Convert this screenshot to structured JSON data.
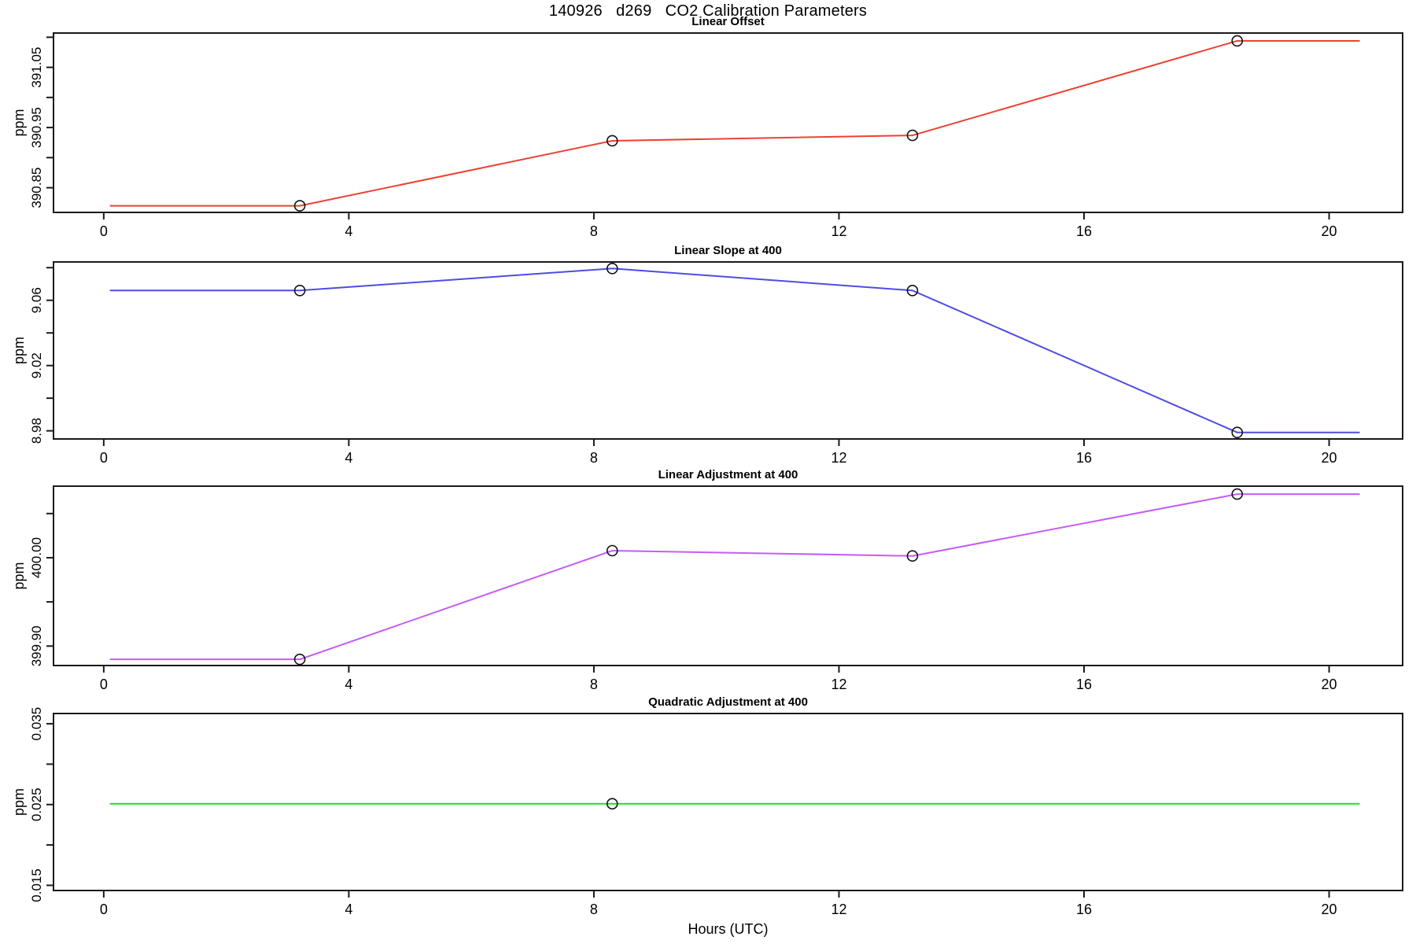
{
  "page_title": "140926   d269   CO2 Calibration Parameters",
  "x_axis": {
    "label": "Hours (UTC)",
    "lim": [
      -0.82,
      21.2
    ],
    "ticks": [
      {
        "v": 0,
        "label": "0"
      },
      {
        "v": 4,
        "label": "4"
      },
      {
        "v": 8,
        "label": "8"
      },
      {
        "v": 12,
        "label": "12"
      },
      {
        "v": 16,
        "label": "16"
      },
      {
        "v": 20,
        "label": "20"
      }
    ]
  },
  "colors": {
    "axis": "#1a1a1a",
    "marker_stroke": "#111111",
    "linear_offset": "#ef4034",
    "linear_slope": "#4d4de0",
    "linear_adjustment": "#c55cf7",
    "quadratic_adjustment": "#2ed32e"
  },
  "chart_data": [
    {
      "type": "line",
      "title": "Linear Offset",
      "ylabel": "ppm",
      "color": "#ef4034",
      "ylim": [
        390.809,
        391.107
      ],
      "yticks": [
        {
          "v": 390.85,
          "label": "390.85"
        },
        {
          "v": 390.9,
          "label": ""
        },
        {
          "v": 390.95,
          "label": "390.95"
        },
        {
          "v": 391.0,
          "label": ""
        },
        {
          "v": 391.05,
          "label": "391.05"
        },
        {
          "v": 391.1,
          "label": ""
        }
      ],
      "points": [
        [
          0.1,
          390.82
        ],
        [
          3.2,
          390.82
        ],
        [
          8.3,
          390.928
        ],
        [
          13.2,
          390.937
        ],
        [
          18.5,
          391.094
        ],
        [
          20.5,
          391.094
        ]
      ],
      "markers": [
        [
          3.2,
          390.82
        ],
        [
          8.3,
          390.928
        ],
        [
          13.2,
          390.937
        ],
        [
          18.5,
          391.094
        ]
      ]
    },
    {
      "type": "line",
      "title": "Linear Slope at 400",
      "ylabel": "ppm",
      "color": "#4d4de0",
      "ylim": [
        8.975,
        9.0835
      ],
      "yticks": [
        {
          "v": 8.98,
          "label": "8.98"
        },
        {
          "v": 9.0,
          "label": ""
        },
        {
          "v": 9.02,
          "label": "9.02"
        },
        {
          "v": 9.04,
          "label": ""
        },
        {
          "v": 9.06,
          "label": "9.06"
        },
        {
          "v": 9.08,
          "label": ""
        }
      ],
      "points": [
        [
          0.1,
          9.066
        ],
        [
          3.2,
          9.066
        ],
        [
          8.3,
          9.0795
        ],
        [
          13.2,
          9.066
        ],
        [
          18.5,
          8.979
        ],
        [
          20.5,
          8.979
        ]
      ],
      "markers": [
        [
          3.2,
          9.066
        ],
        [
          8.3,
          9.0795
        ],
        [
          13.2,
          9.066
        ],
        [
          18.5,
          8.979
        ]
      ]
    },
    {
      "type": "line",
      "title": "Linear Adjustment at 400",
      "ylabel": "ppm",
      "color": "#c55cf7",
      "ylim": [
        399.878,
        400.081
      ],
      "yticks": [
        {
          "v": 399.9,
          "label": "399.90"
        },
        {
          "v": 399.95,
          "label": ""
        },
        {
          "v": 400.0,
          "label": "400.00"
        },
        {
          "v": 400.05,
          "label": ""
        }
      ],
      "points": [
        [
          0.1,
          399.885
        ],
        [
          3.2,
          399.885
        ],
        [
          8.3,
          400.008
        ],
        [
          13.2,
          400.002
        ],
        [
          18.5,
          400.072
        ],
        [
          20.5,
          400.072
        ]
      ],
      "markers": [
        [
          3.2,
          399.885
        ],
        [
          8.3,
          400.008
        ],
        [
          13.2,
          400.002
        ],
        [
          18.5,
          400.072
        ]
      ]
    },
    {
      "type": "line",
      "title": "Quadratic Adjustment at 400",
      "ylabel": "ppm",
      "color": "#2ed32e",
      "ylim": [
        0.01436,
        0.03627
      ],
      "yticks": [
        {
          "v": 0.015,
          "label": "0.015"
        },
        {
          "v": 0.02,
          "label": ""
        },
        {
          "v": 0.025,
          "label": "0.025"
        },
        {
          "v": 0.03,
          "label": ""
        },
        {
          "v": 0.035,
          "label": "0.035"
        }
      ],
      "points": [
        [
          0.1,
          0.0251
        ],
        [
          20.5,
          0.0251
        ]
      ],
      "markers": [
        [
          8.3,
          0.0251
        ]
      ]
    }
  ]
}
